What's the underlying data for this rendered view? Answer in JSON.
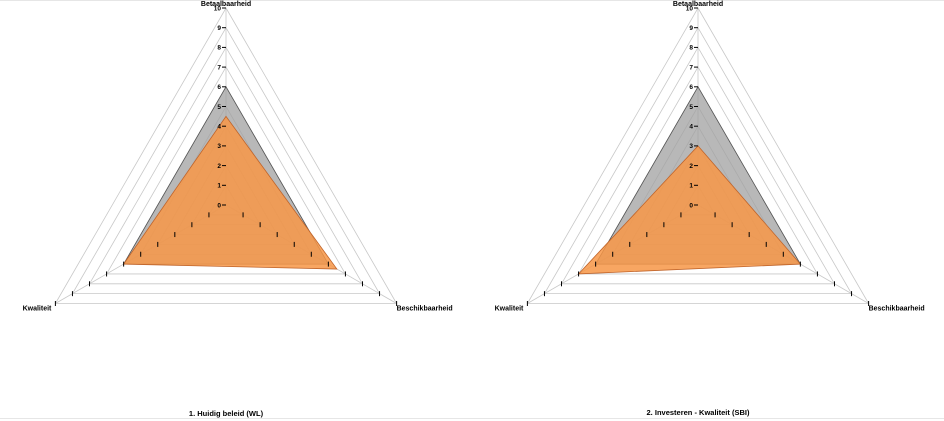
{
  "chart_data": [
    {
      "type": "radar",
      "title": "1. Huidig beleid (WL)",
      "axes": [
        "Betaalbaarheid",
        "Beschikbaarheid",
        "Kwaliteit"
      ],
      "rlim": [
        0,
        10
      ],
      "ticks": [
        "0",
        "1",
        "2",
        "3",
        "4",
        "5",
        "6",
        "7",
        "8",
        "9",
        "10"
      ],
      "grid": true,
      "series": [
        {
          "values": [
            6.0,
            6.0,
            6.0
          ],
          "color": "#a0a0a0"
        },
        {
          "values": [
            4.5,
            6.5,
            6.0
          ],
          "color": "#f79646"
        }
      ]
    },
    {
      "type": "radar",
      "title": "2. Investeren - Kwaliteit (SBI)",
      "axes": [
        "Betaalbaarheid",
        "Beschikbaarheid",
        "Kwaliteit"
      ],
      "rlim": [
        0,
        10
      ],
      "ticks": [
        "0",
        "1",
        "2",
        "3",
        "4",
        "5",
        "6",
        "7",
        "8",
        "9",
        "10"
      ],
      "grid": true,
      "series": [
        {
          "values": [
            6.0,
            6.0,
            6.0
          ],
          "color": "#a0a0a0"
        },
        {
          "values": [
            3.0,
            6.0,
            7.0
          ],
          "color": "#f79646"
        }
      ]
    }
  ]
}
